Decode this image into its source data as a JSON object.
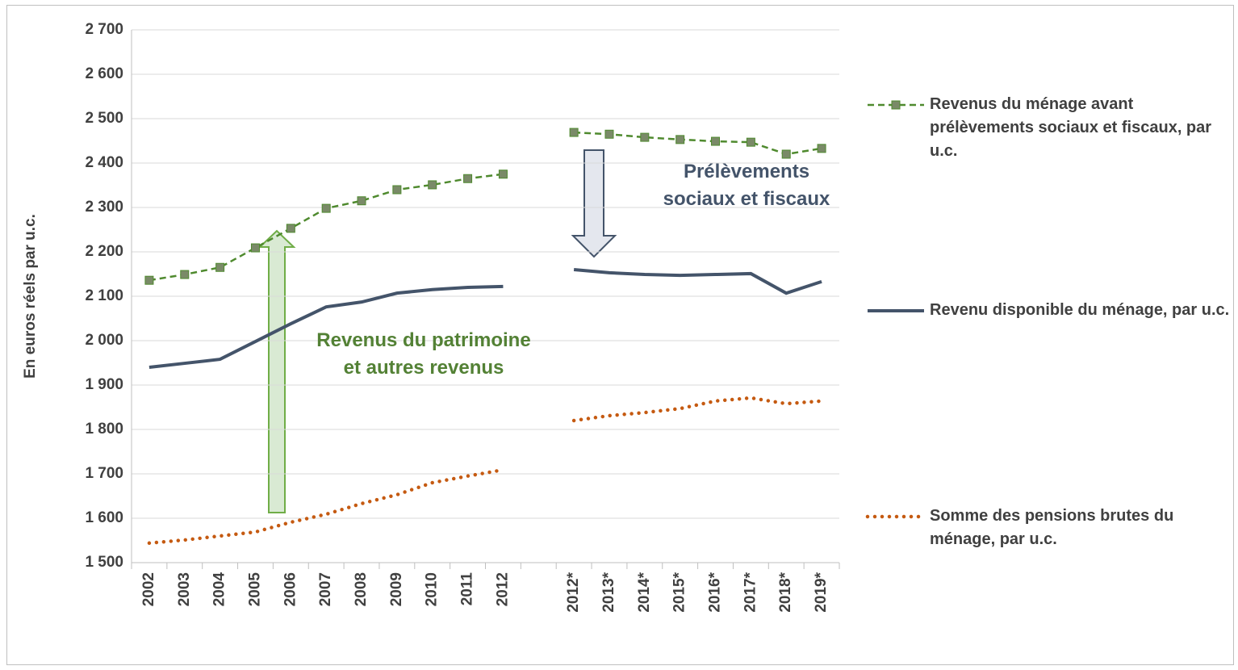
{
  "chart_data": {
    "type": "line",
    "y_label": "En euros réels par u.c.",
    "categories": [
      "2002",
      "2003",
      "2004",
      "2005",
      "2006",
      "2007",
      "2008",
      "2009",
      "2010",
      "2011",
      "2012",
      null,
      "2012*",
      "2013*",
      "2014*",
      "2015*",
      "2016*",
      "2017*",
      "2018*",
      "2019*"
    ],
    "ylim": [
      1500,
      2700
    ],
    "yticks": [
      {
        "value": 1500,
        "label": "1 500"
      },
      {
        "value": 1600,
        "label": "1 600"
      },
      {
        "value": 1700,
        "label": "1 700"
      },
      {
        "value": 1800,
        "label": "1 800"
      },
      {
        "value": 1900,
        "label": "1 900"
      },
      {
        "value": 2000,
        "label": "2 000"
      },
      {
        "value": 2100,
        "label": "2 100"
      },
      {
        "value": 2200,
        "label": "2 200"
      },
      {
        "value": 2300,
        "label": "2 300"
      },
      {
        "value": 2400,
        "label": "2 400"
      },
      {
        "value": 2500,
        "label": "2 500"
      },
      {
        "value": 2600,
        "label": "2 600"
      },
      {
        "value": 2700,
        "label": "2 700"
      }
    ],
    "grid": true,
    "series": [
      {
        "name": "Revenus du ménage avant prélèvements sociaux et fiscaux, par u.c.",
        "color": "#4f8a2e",
        "marker_color": "#7a8a68",
        "style": "dashed",
        "values": [
          2136,
          2149,
          2165,
          2209,
          2253,
          2298,
          2315,
          2340,
          2351,
          2365,
          2375,
          null,
          2469,
          2465,
          2458,
          2453,
          2449,
          2447,
          2420,
          2433
        ]
      },
      {
        "name": "Revenu disponible du ménage, par u.c.",
        "color": "#44546a",
        "style": "solid",
        "values": [
          1940,
          1949,
          1958,
          1998,
          2038,
          2076,
          2087,
          2107,
          2115,
          2120,
          2122,
          null,
          2160,
          2153,
          2149,
          2147,
          2149,
          2151,
          2107,
          2133
        ]
      },
      {
        "name": "Somme des pensions brutes du ménage, par u.c.",
        "color": "#c55a11",
        "style": "dotted",
        "values": [
          1544,
          1551,
          1560,
          1569,
          1591,
          1609,
          1633,
          1653,
          1680,
          1695,
          1709,
          null,
          1820,
          1831,
          1838,
          1847,
          1864,
          1871,
          1858,
          1864
        ]
      }
    ],
    "annotations": [
      {
        "lines": [
          "Revenus du patrimoine",
          "et autres revenus"
        ],
        "color": "#538135"
      },
      {
        "lines": [
          "Prélèvements",
          "sociaux et fiscaux"
        ],
        "color": "#44546a"
      }
    ]
  }
}
